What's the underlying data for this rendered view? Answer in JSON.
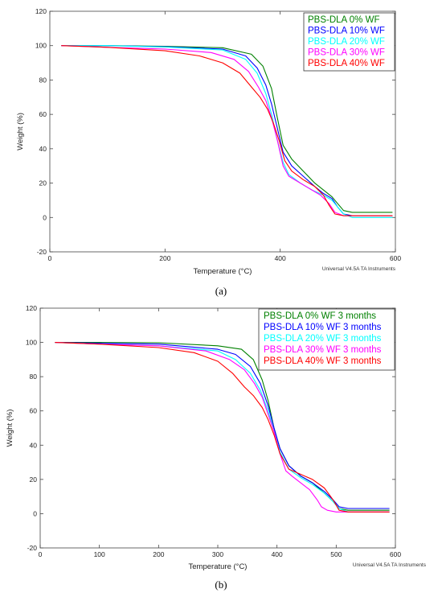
{
  "chart_data": [
    {
      "type": "line",
      "panel_label": "(a)",
      "xlabel": "Temperature (°C)",
      "ylabel": "Weight (%)",
      "credit": "Universal V4.5A TA Instruments",
      "xlim": [
        0,
        600
      ],
      "ylim": [
        -20,
        120
      ],
      "x_ticks": [
        0,
        200,
        400,
        600
      ],
      "y_ticks": [
        -20,
        0,
        20,
        40,
        60,
        80,
        100,
        120
      ],
      "legend_position": "top-right",
      "series": [
        {
          "name": "PBS-DLA 0%  WF",
          "color": "#008000",
          "points": [
            [
              20,
              100
            ],
            [
              100,
              100
            ],
            [
              200,
              99.6
            ],
            [
              300,
              98.8
            ],
            [
              350,
              95
            ],
            [
              370,
              88
            ],
            [
              385,
              75
            ],
            [
              395,
              58
            ],
            [
              405,
              42
            ],
            [
              420,
              34
            ],
            [
              440,
              27
            ],
            [
              460,
              20
            ],
            [
              475,
              16
            ],
            [
              490,
              12
            ],
            [
              500,
              8
            ],
            [
              510,
              4
            ],
            [
              525,
              3
            ],
            [
              595,
              3
            ]
          ]
        },
        {
          "name": "PBS-DLA 10% WF",
          "color": "#0000ff",
          "points": [
            [
              20,
              100
            ],
            [
              100,
              100
            ],
            [
              200,
              99.4
            ],
            [
              300,
              98
            ],
            [
              340,
              94
            ],
            [
              360,
              87
            ],
            [
              375,
              77
            ],
            [
              385,
              66
            ],
            [
              395,
              52
            ],
            [
              405,
              38
            ],
            [
              420,
              30
            ],
            [
              440,
              24
            ],
            [
              460,
              18
            ],
            [
              475,
              14
            ],
            [
              490,
              11
            ],
            [
              500,
              6
            ],
            [
              510,
              2
            ],
            [
              525,
              1
            ],
            [
              595,
              1
            ]
          ]
        },
        {
          "name": "PBS-DLA 20% WF",
          "color": "#00ffff",
          "points": [
            [
              20,
              100
            ],
            [
              100,
              100
            ],
            [
              200,
              99.2
            ],
            [
              300,
              97.5
            ],
            [
              340,
              92
            ],
            [
              360,
              84
            ],
            [
              375,
              72
            ],
            [
              385,
              60
            ],
            [
              395,
              45
            ],
            [
              405,
              32
            ],
            [
              415,
              25
            ],
            [
              435,
              20
            ],
            [
              455,
              16
            ],
            [
              475,
              13
            ],
            [
              490,
              10
            ],
            [
              500,
              6
            ],
            [
              510,
              2
            ],
            [
              525,
              0
            ],
            [
              595,
              0
            ]
          ]
        },
        {
          "name": "PBS-DLA 30% WF",
          "color": "#ff00ff",
          "points": [
            [
              20,
              100
            ],
            [
              100,
              99
            ],
            [
              200,
              98
            ],
            [
              280,
              96
            ],
            [
              320,
              92
            ],
            [
              345,
              85
            ],
            [
              362,
              76
            ],
            [
              375,
              68
            ],
            [
              385,
              58
            ],
            [
              395,
              45
            ],
            [
              405,
              30
            ],
            [
              415,
              24
            ],
            [
              435,
              20
            ],
            [
              455,
              16
            ],
            [
              470,
              13
            ],
            [
              485,
              8
            ],
            [
              495,
              3
            ],
            [
              510,
              1
            ],
            [
              595,
              1
            ]
          ]
        },
        {
          "name": "PBS-DLA 40% WF",
          "color": "#ff0000",
          "points": [
            [
              20,
              100
            ],
            [
              100,
              99
            ],
            [
              200,
              97
            ],
            [
              260,
              94
            ],
            [
              300,
              90
            ],
            [
              330,
              84
            ],
            [
              350,
              76
            ],
            [
              365,
              70
            ],
            [
              378,
              63
            ],
            [
              388,
              55
            ],
            [
              398,
              45
            ],
            [
              408,
              33
            ],
            [
              420,
              27
            ],
            [
              440,
              22
            ],
            [
              460,
              18
            ],
            [
              475,
              13
            ],
            [
              485,
              7
            ],
            [
              495,
              2
            ],
            [
              510,
              1
            ],
            [
              595,
              1
            ]
          ]
        }
      ]
    },
    {
      "type": "line",
      "panel_label": "(b)",
      "xlabel": "Temperature (°C)",
      "ylabel": "Weight (%)",
      "credit": "Universal V4.5A TA Instruments",
      "xlim": [
        0,
        600
      ],
      "ylim": [
        -20,
        120
      ],
      "x_ticks": [
        0,
        100,
        200,
        300,
        400,
        500,
        600
      ],
      "y_ticks": [
        -20,
        0,
        20,
        40,
        60,
        80,
        100,
        120
      ],
      "legend_position": "top-right",
      "series": [
        {
          "name": "PBS-DLA 0%  WF 3 months",
          "color": "#008000",
          "points": [
            [
              25,
              100
            ],
            [
              100,
              100
            ],
            [
              200,
              99.8
            ],
            [
              300,
              98
            ],
            [
              340,
              96
            ],
            [
              360,
              90
            ],
            [
              375,
              78
            ],
            [
              385,
              66
            ],
            [
              395,
              50
            ],
            [
              405,
              38
            ],
            [
              420,
              28
            ],
            [
              440,
              22
            ],
            [
              460,
              18
            ],
            [
              480,
              12
            ],
            [
              495,
              7
            ],
            [
              505,
              3
            ],
            [
              520,
              2
            ],
            [
              590,
              2
            ]
          ]
        },
        {
          "name": "PBS-DLA 10% WF 3 months",
          "color": "#0000ff",
          "points": [
            [
              25,
              100
            ],
            [
              100,
              99.5
            ],
            [
              200,
              99
            ],
            [
              300,
              96
            ],
            [
              330,
              93
            ],
            [
              355,
              86
            ],
            [
              372,
              76
            ],
            [
              385,
              63
            ],
            [
              395,
              50
            ],
            [
              405,
              38
            ],
            [
              420,
              28
            ],
            [
              440,
              22
            ],
            [
              460,
              18
            ],
            [
              480,
              13
            ],
            [
              495,
              8
            ],
            [
              505,
              4
            ],
            [
              520,
              3
            ],
            [
              590,
              3
            ]
          ]
        },
        {
          "name": "PBS-DLA 20% WF 3 months",
          "color": "#00ffff",
          "points": [
            [
              25,
              100
            ],
            [
              100,
              99
            ],
            [
              200,
              98
            ],
            [
              300,
              95
            ],
            [
              330,
              90
            ],
            [
              355,
              82
            ],
            [
              372,
              72
            ],
            [
              385,
              60
            ],
            [
              395,
              48
            ],
            [
              405,
              36
            ],
            [
              420,
              26
            ],
            [
              440,
              21
            ],
            [
              460,
              17
            ],
            [
              480,
              12
            ],
            [
              495,
              7
            ],
            [
              505,
              3
            ],
            [
              520,
              1
            ],
            [
              590,
              1
            ]
          ]
        },
        {
          "name": "PBS-DLA 30% WF 3 months",
          "color": "#ff00ff",
          "points": [
            [
              25,
              100
            ],
            [
              100,
              99
            ],
            [
              200,
              98
            ],
            [
              280,
              95
            ],
            [
              320,
              90
            ],
            [
              345,
              84
            ],
            [
              362,
              76
            ],
            [
              375,
              68
            ],
            [
              385,
              58
            ],
            [
              395,
              48
            ],
            [
              405,
              35
            ],
            [
              415,
              25
            ],
            [
              425,
              22
            ],
            [
              440,
              18
            ],
            [
              455,
              14
            ],
            [
              468,
              8
            ],
            [
              475,
              4
            ],
            [
              485,
              2
            ],
            [
              500,
              1
            ],
            [
              590,
              1
            ]
          ]
        },
        {
          "name": "PBS-DLA 40% WF 3 months",
          "color": "#ff0000",
          "points": [
            [
              25,
              100
            ],
            [
              100,
              99
            ],
            [
              200,
              97
            ],
            [
              260,
              94
            ],
            [
              300,
              89
            ],
            [
              325,
              82
            ],
            [
              345,
              74
            ],
            [
              360,
              69
            ],
            [
              375,
              62
            ],
            [
              385,
              55
            ],
            [
              395,
              46
            ],
            [
              405,
              35
            ],
            [
              420,
              26
            ],
            [
              440,
              23
            ],
            [
              460,
              20
            ],
            [
              480,
              15
            ],
            [
              495,
              8
            ],
            [
              505,
              2
            ],
            [
              520,
              1
            ],
            [
              590,
              1
            ]
          ]
        }
      ]
    }
  ]
}
